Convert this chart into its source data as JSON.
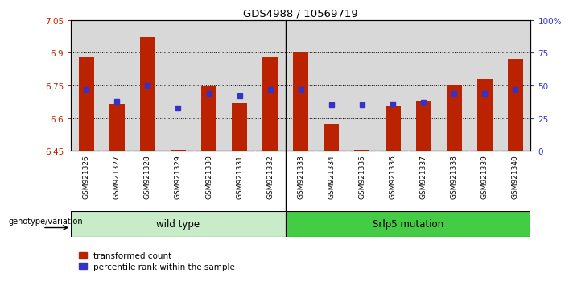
{
  "title": "GDS4988 / 10569719",
  "samples": [
    "GSM921326",
    "GSM921327",
    "GSM921328",
    "GSM921329",
    "GSM921330",
    "GSM921331",
    "GSM921332",
    "GSM921333",
    "GSM921334",
    "GSM921335",
    "GSM921336",
    "GSM921337",
    "GSM921338",
    "GSM921339",
    "GSM921340"
  ],
  "red_values": [
    6.88,
    6.665,
    6.97,
    6.455,
    6.745,
    6.67,
    6.88,
    6.9,
    6.575,
    6.455,
    6.655,
    6.68,
    6.75,
    6.78,
    6.87
  ],
  "blue_percentiles": [
    47,
    38,
    50,
    33,
    44,
    42,
    47,
    47,
    35,
    35,
    36,
    37,
    44,
    44,
    47
  ],
  "ymin": 6.45,
  "ymax": 7.05,
  "yticks": [
    6.45,
    6.6,
    6.75,
    6.9,
    7.05
  ],
  "right_yticks": [
    0,
    25,
    50,
    75,
    100
  ],
  "right_yticklabels": [
    "0",
    "25",
    "50",
    "75",
    "100%"
  ],
  "grid_values": [
    6.6,
    6.75,
    6.9
  ],
  "bar_color": "#bb2200",
  "blue_color": "#3333cc",
  "wild_type_samples": 7,
  "genotype_label": "genotype/variation",
  "group1_label": "wild type",
  "group2_label": "Srlp5 mutation",
  "legend1": "transformed count",
  "legend2": "percentile rank within the sample",
  "light_green": "#c8ecc8",
  "dark_green": "#44cc44",
  "plot_bg": "#d8d8d8",
  "xtick_bg": "#c0c0c0"
}
